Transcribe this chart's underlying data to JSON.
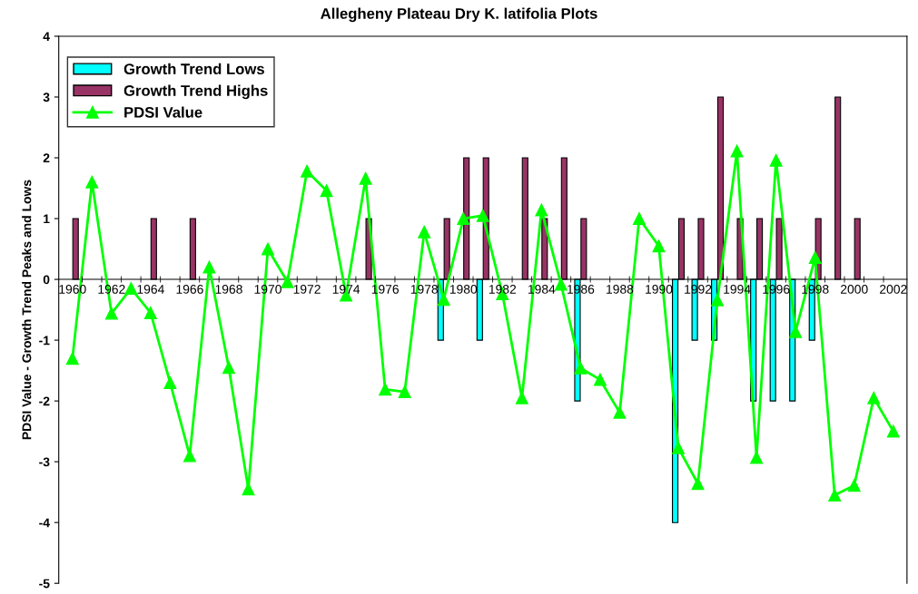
{
  "chart_data": {
    "type": "bar",
    "title": "Allegheny Plateau Dry K. latifolia Plots",
    "ylabel": "PDSI Value - Growth Trend Peaks and Lows",
    "categories": [
      "1960",
      null,
      "1962",
      null,
      "1964",
      null,
      "1966",
      null,
      "1968",
      null,
      "1970",
      null,
      "1972",
      null,
      "1974",
      null,
      "1976",
      null,
      "1978",
      null,
      "1980",
      null,
      "1982",
      null,
      "1984",
      null,
      "1986",
      null,
      "1988",
      null,
      "1990",
      null,
      "1992",
      null,
      "1994",
      null,
      "1996",
      null,
      "1998",
      null,
      "2000",
      null,
      "2002"
    ],
    "series": [
      {
        "name": "Growth Trend Lows",
        "color": "#00ffff",
        "values": [
          null,
          null,
          null,
          null,
          null,
          null,
          null,
          null,
          null,
          null,
          null,
          null,
          null,
          null,
          null,
          null,
          null,
          null,
          null,
          -1,
          null,
          -1,
          null,
          null,
          null,
          null,
          -2,
          null,
          null,
          null,
          null,
          -4,
          -1,
          -1,
          null,
          -2,
          -2,
          -2,
          -1,
          null,
          null,
          null,
          null
        ]
      },
      {
        "name": "Growth Trend Highs",
        "color": "#993366",
        "values": [
          1,
          null,
          null,
          null,
          1,
          null,
          1,
          null,
          null,
          null,
          null,
          null,
          null,
          null,
          null,
          1,
          null,
          null,
          null,
          1,
          2,
          2,
          null,
          2,
          1,
          2,
          1,
          null,
          null,
          null,
          null,
          1,
          1,
          3,
          1,
          1,
          1,
          null,
          1,
          3,
          1,
          null,
          null
        ]
      },
      {
        "name": "PDSI Value",
        "type": "line",
        "color": "#00ff00",
        "marker": "triangle",
        "values": [
          -1.3,
          1.6,
          -0.56,
          -0.15,
          -0.55,
          -1.7,
          -2.9,
          0.2,
          -1.45,
          -3.45,
          0.5,
          -0.04,
          1.78,
          1.46,
          -0.26,
          1.66,
          -1.81,
          -1.85,
          0.78,
          -0.33,
          1.0,
          1.05,
          -0.24,
          -1.95,
          1.14,
          -0.08,
          -1.46,
          -1.65,
          -2.19,
          1.0,
          0.55,
          -2.77,
          -3.36,
          -0.34,
          2.11,
          -2.93,
          1.96,
          -0.86,
          0.36,
          -3.55,
          -3.39,
          -1.95,
          -2.5
        ]
      }
    ],
    "ylim": [
      -5,
      4
    ],
    "yticks": [
      -5,
      -4,
      -3,
      -2,
      -1,
      0,
      1,
      2,
      3,
      4
    ],
    "grid": false,
    "legend": "top left"
  }
}
